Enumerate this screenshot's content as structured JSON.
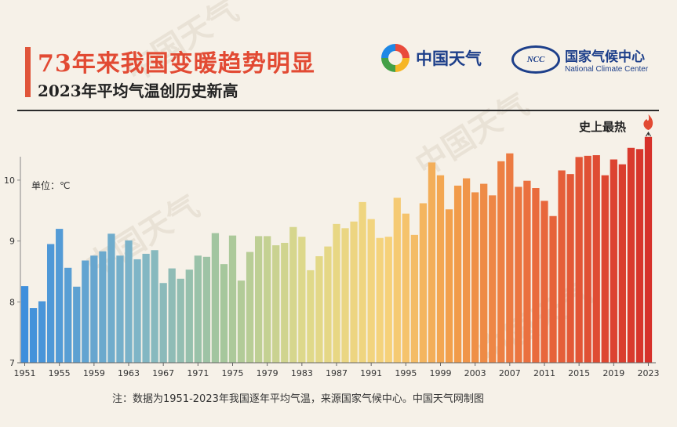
{
  "header": {
    "title": "73年来我国变暖趋势明显",
    "subtitle": "2023年平均气温创历史新高"
  },
  "logos": {
    "cma_name": "中国天气",
    "ncc_cn": "国家气候中心",
    "ncc_en": "National Climate Center",
    "ncc_mark": "NCC"
  },
  "watermark_text": "中国天气",
  "annotation": {
    "record_label": "史上最热"
  },
  "footnote": "注：数据为1951-2023年我国逐年平均气温，来源国家气候中心。中国天气网制图",
  "colors": {
    "cool": "#4a90d9",
    "warm_yellow": "#f0d77a",
    "hot": "#d9362b",
    "flame": "#e24a33"
  },
  "chart_data": {
    "type": "bar",
    "title": "73年来我国变暖趋势明显",
    "subtitle": "2023年平均气温创历史新高",
    "xlabel": "",
    "ylabel": "单位：℃",
    "ylim": [
      7,
      10.9
    ],
    "yticks": [
      7,
      8,
      9,
      10
    ],
    "xticks": [
      1951,
      1955,
      1959,
      1963,
      1967,
      1971,
      1975,
      1979,
      1983,
      1987,
      1991,
      1995,
      1999,
      2003,
      2007,
      2011,
      2015,
      2019,
      2023
    ],
    "grid": false,
    "x": [
      1951,
      1952,
      1953,
      1954,
      1955,
      1956,
      1957,
      1958,
      1959,
      1960,
      1961,
      1962,
      1963,
      1964,
      1965,
      1966,
      1967,
      1968,
      1969,
      1970,
      1971,
      1972,
      1973,
      1974,
      1975,
      1976,
      1977,
      1978,
      1979,
      1980,
      1981,
      1982,
      1983,
      1984,
      1985,
      1986,
      1987,
      1988,
      1989,
      1990,
      1991,
      1992,
      1993,
      1994,
      1995,
      1996,
      1997,
      1998,
      1999,
      2000,
      2001,
      2002,
      2003,
      2004,
      2005,
      2006,
      2007,
      2008,
      2009,
      2010,
      2011,
      2012,
      2013,
      2014,
      2015,
      2016,
      2017,
      2018,
      2019,
      2020,
      2021,
      2022,
      2023
    ],
    "values": [
      8.26,
      7.9,
      8.01,
      8.95,
      9.2,
      8.56,
      8.25,
      8.68,
      8.76,
      8.83,
      9.12,
      8.76,
      9.01,
      8.7,
      8.79,
      8.85,
      8.31,
      8.55,
      8.38,
      8.53,
      8.76,
      8.74,
      9.13,
      8.62,
      9.09,
      8.35,
      8.82,
      9.08,
      9.08,
      8.93,
      8.97,
      9.23,
      9.07,
      8.52,
      8.75,
      8.91,
      9.28,
      9.21,
      9.32,
      9.64,
      9.36,
      9.05,
      9.07,
      9.71,
      9.45,
      9.1,
      9.62,
      10.29,
      10.08,
      9.52,
      9.91,
      10.03,
      9.8,
      9.94,
      9.75,
      10.31,
      10.44,
      9.89,
      9.99,
      9.87,
      9.66,
      9.41,
      10.16,
      10.1,
      10.38,
      10.4,
      10.41,
      10.08,
      10.34,
      10.26,
      10.53,
      10.51,
      10.71
    ],
    "annotations": [
      {
        "x": 2023,
        "text": "史上最热"
      }
    ]
  }
}
